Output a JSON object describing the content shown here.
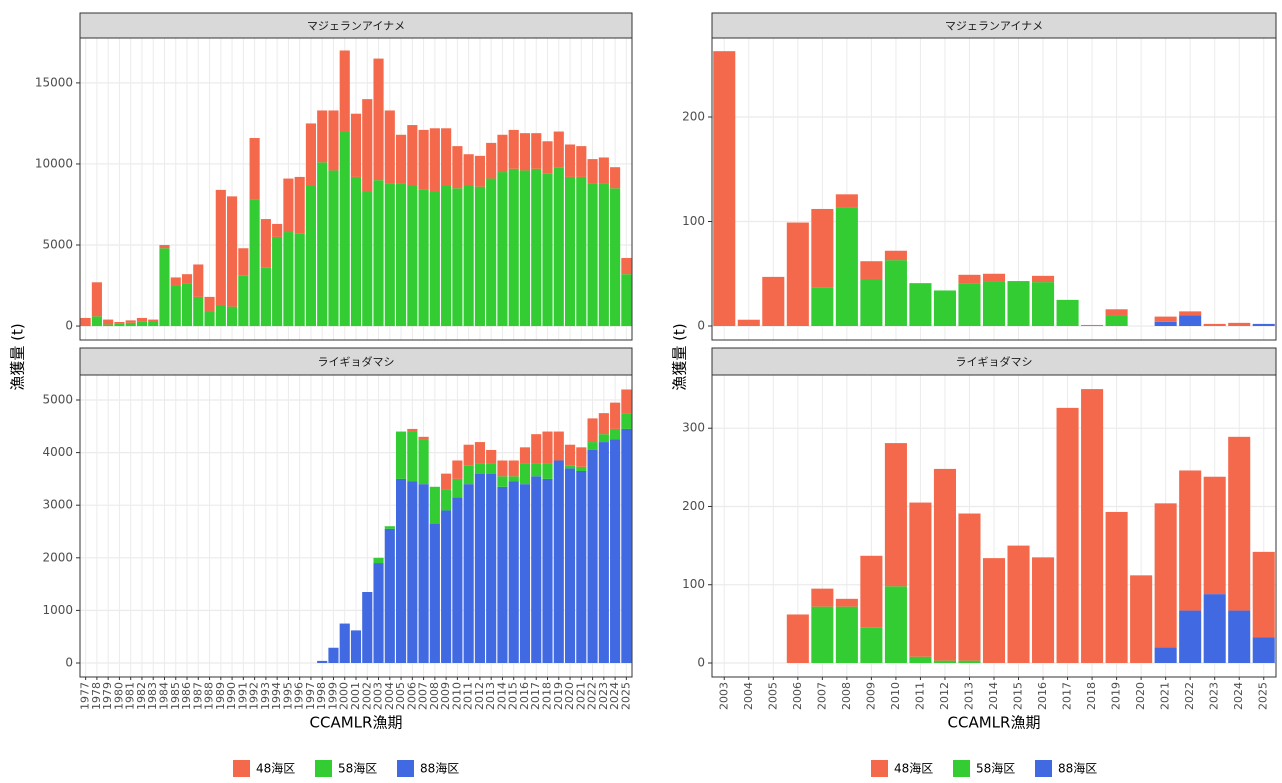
{
  "chart_data": [
    {
      "type": "bar",
      "stacked": true,
      "grid": true,
      "legend": "bottom",
      "xlabel": "CCAMLR漁期",
      "ylabel": "漁獲量 (t)",
      "categories": [
        "1977",
        "1978",
        "1979",
        "1980",
        "1981",
        "1982",
        "1983",
        "1984",
        "1985",
        "1986",
        "1987",
        "1988",
        "1989",
        "1990",
        "1991",
        "1992",
        "1993",
        "1994",
        "1995",
        "1996",
        "1997",
        "1998",
        "1999",
        "2000",
        "2001",
        "2002",
        "2003",
        "2004",
        "2005",
        "2006",
        "2007",
        "2008",
        "2009",
        "2010",
        "2011",
        "2012",
        "2013",
        "2014",
        "2015",
        "2016",
        "2017",
        "2018",
        "2019",
        "2020",
        "2021",
        "2022",
        "2023",
        "2024",
        "2025"
      ],
      "facets": [
        {
          "title": "マジェランアイナメ",
          "ylim": [
            -860,
            17770
          ],
          "yticks": [
            0,
            5000,
            10000,
            15000
          ],
          "series": [
            {
              "name": "48海区",
              "color": "#f4694b",
              "values": [
                500,
                2100,
                300,
                100,
                150,
                200,
                150,
                200,
                500,
                600,
                2000,
                900,
                7100,
                6800,
                1700,
                3800,
                3000,
                800,
                3300,
                3500,
                3800,
                3200,
                3700,
                5000,
                3900,
                5700,
                7500,
                4500,
                3000,
                3700,
                3700,
                3900,
                3500,
                2600,
                1900,
                1900,
                2200,
                2300,
                2400,
                2300,
                2200,
                2000,
                2200,
                2000,
                1900,
                1500,
                1600,
                1300,
                1000
              ]
            },
            {
              "name": "58海区",
              "color": "#33cc33",
              "values": [
                0,
                600,
                100,
                150,
                200,
                300,
                250,
                4800,
                2500,
                2600,
                1800,
                900,
                1300,
                1200,
                3100,
                7800,
                3600,
                5500,
                5800,
                5700,
                8700,
                10100,
                9600,
                12000,
                9200,
                8300,
                9000,
                8800,
                8800,
                8700,
                8400,
                8300,
                8700,
                8500,
                8700,
                8600,
                9100,
                9500,
                9700,
                9600,
                9700,
                9400,
                9800,
                9200,
                9200,
                8800,
                8800,
                8500,
                3200
              ]
            },
            {
              "name": "88海区",
              "color": "#4169e1",
              "values": [
                0,
                0,
                0,
                0,
                0,
                0,
                0,
                0,
                0,
                0,
                0,
                0,
                0,
                0,
                0,
                0,
                0,
                0,
                0,
                0,
                0,
                0,
                0,
                0,
                0,
                0,
                0,
                0,
                0,
                0,
                0,
                0,
                0,
                0,
                0,
                0,
                0,
                0,
                0,
                0,
                0,
                0,
                0,
                0,
                0,
                0,
                0,
                0,
                0
              ]
            }
          ]
        },
        {
          "title": "ライギョダマシ",
          "ylim": [
            -266,
            5475
          ],
          "yticks": [
            0,
            1000,
            2000,
            3000,
            4000,
            5000
          ],
          "series": [
            {
              "name": "48海区",
              "color": "#f4694b",
              "values": [
                0,
                0,
                0,
                0,
                0,
                0,
                0,
                0,
                0,
                0,
                0,
                0,
                0,
                0,
                0,
                0,
                0,
                0,
                0,
                0,
                0,
                0,
                0,
                0,
                0,
                0,
                0,
                0,
                0,
                50,
                50,
                0,
                300,
                350,
                400,
                400,
                250,
                300,
                300,
                300,
                550,
                600,
                550,
                400,
                370,
                450,
                400,
                500,
                450
              ]
            },
            {
              "name": "58海区",
              "color": "#33cc33",
              "values": [
                0,
                0,
                0,
                0,
                0,
                0,
                0,
                0,
                0,
                0,
                0,
                0,
                0,
                0,
                0,
                0,
                0,
                0,
                0,
                0,
                0,
                0,
                0,
                0,
                0,
                0,
                100,
                50,
                900,
                950,
                850,
                700,
                400,
                350,
                350,
                200,
                200,
                200,
                100,
                400,
                250,
                300,
                0,
                50,
                80,
                150,
                150,
                200,
                300
              ]
            },
            {
              "name": "88海区",
              "color": "#4169e1",
              "values": [
                0,
                0,
                0,
                0,
                0,
                0,
                0,
                0,
                0,
                0,
                0,
                0,
                0,
                0,
                0,
                0,
                0,
                0,
                0,
                0,
                0,
                40,
                290,
                750,
                620,
                1350,
                1900,
                2550,
                3500,
                3450,
                3400,
                2650,
                2900,
                3150,
                3400,
                3600,
                3600,
                3350,
                3450,
                3400,
                3550,
                3500,
                3850,
                3700,
                3650,
                4050,
                4200,
                4250,
                4450
              ]
            }
          ]
        }
      ]
    },
    {
      "type": "bar",
      "stacked": true,
      "grid": true,
      "legend": "bottom",
      "xlabel": "CCAMLR漁期",
      "ylabel": "漁獲量 (t)",
      "categories": [
        "2003",
        "2004",
        "2005",
        "2006",
        "2007",
        "2008",
        "2009",
        "2010",
        "2011",
        "2012",
        "2013",
        "2014",
        "2015",
        "2016",
        "2017",
        "2018",
        "2019",
        "2020",
        "2021",
        "2022",
        "2023",
        "2024",
        "2025"
      ],
      "facets": [
        {
          "title": "マジェランアイナメ",
          "ylim": [
            -13.4,
            275.6
          ],
          "yticks": [
            0,
            100,
            200
          ],
          "series": [
            {
              "name": "48海区",
              "color": "#f4694b",
              "values": [
                263,
                6,
                47,
                99,
                75,
                13,
                17,
                9,
                0,
                0,
                8,
                7,
                0,
                6,
                0,
                1,
                6,
                0,
                5,
                4,
                2,
                3,
                0
              ]
            },
            {
              "name": "58海区",
              "color": "#33cc33",
              "values": [
                0,
                0,
                0,
                0,
                37,
                113,
                45,
                63,
                41,
                34,
                41,
                43,
                43,
                42,
                25,
                0,
                10,
                0,
                0,
                0,
                0,
                0,
                0
              ]
            },
            {
              "name": "88海区",
              "color": "#4169e1",
              "values": [
                0,
                0,
                0,
                0,
                0,
                0,
                0,
                0,
                0,
                0,
                0,
                0,
                0,
                0,
                0,
                0,
                0,
                0,
                4,
                10,
                0,
                0,
                2
              ]
            }
          ]
        },
        {
          "title": "ライギョダマシ",
          "ylim": [
            -17.9,
            368
          ],
          "yticks": [
            0,
            100,
            200,
            300
          ],
          "series": [
            {
              "name": "48海区",
              "color": "#f4694b",
              "values": [
                0,
                0,
                0,
                62,
                23,
                10,
                92,
                183,
                197,
                245,
                188,
                134,
                150,
                135,
                326,
                350,
                193,
                112,
                184,
                179,
                150,
                222,
                109
              ]
            },
            {
              "name": "58海区",
              "color": "#33cc33",
              "values": [
                0,
                0,
                0,
                0,
                72,
                72,
                45,
                98,
                8,
                3,
                3,
                0,
                0,
                0,
                0,
                0,
                0,
                0,
                0,
                0,
                0,
                0,
                0
              ]
            },
            {
              "name": "88海区",
              "color": "#4169e1",
              "values": [
                0,
                0,
                0,
                0,
                0,
                0,
                0,
                0,
                0,
                0,
                0,
                0,
                0,
                0,
                0,
                0,
                0,
                0,
                20,
                67,
                88,
                67,
                33
              ]
            }
          ]
        }
      ]
    }
  ]
}
